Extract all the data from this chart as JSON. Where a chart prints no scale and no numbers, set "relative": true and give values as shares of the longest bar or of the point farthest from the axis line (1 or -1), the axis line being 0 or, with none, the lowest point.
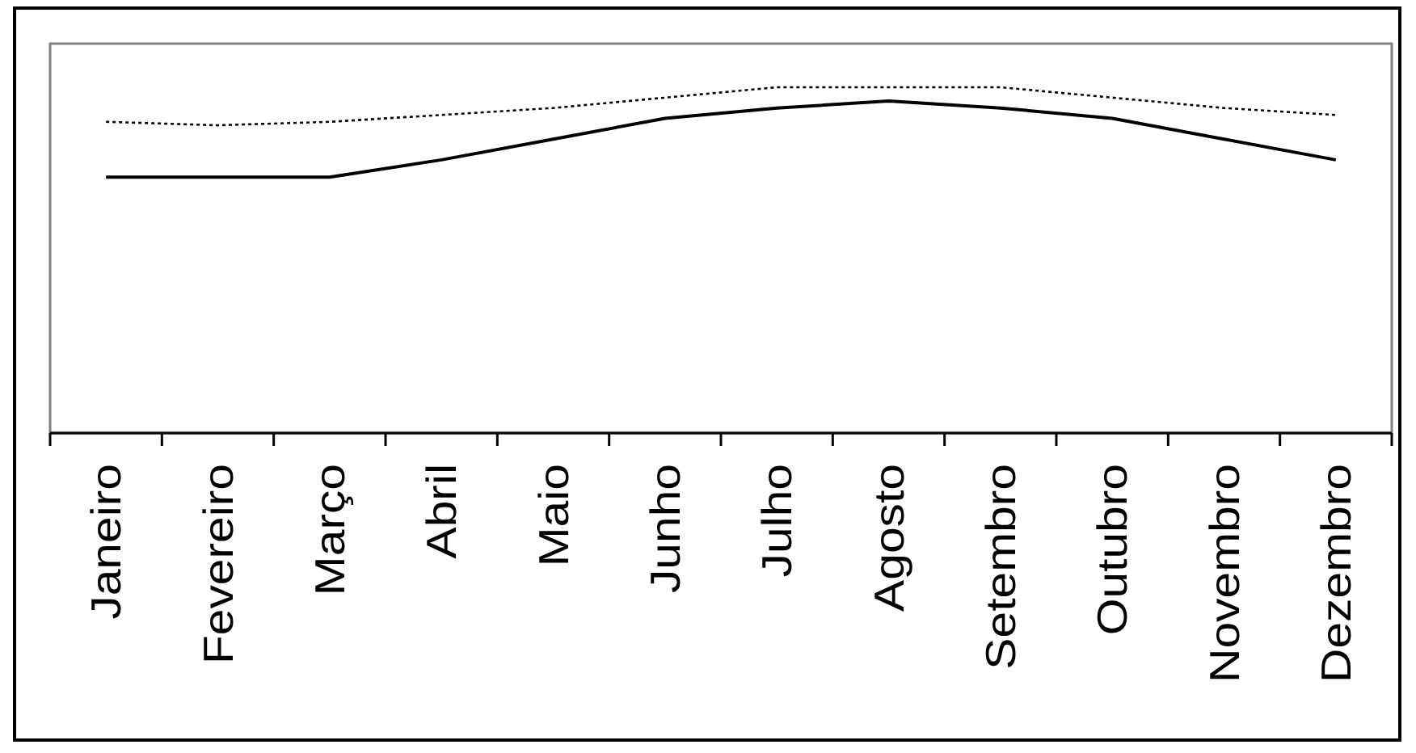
{
  "chart_data": {
    "type": "line",
    "relative": true,
    "categories": [
      "Janeiro",
      "Fevereiro",
      "Março",
      "Abril",
      "Maio",
      "Junho",
      "Julho",
      "Agosto",
      "Setembro",
      "Outubro",
      "Novembro",
      "Dezembro"
    ],
    "series": [
      {
        "color": "#000000",
        "line_style": "dotted",
        "values": [
          0.9,
          0.89,
          0.9,
          0.92,
          0.94,
          0.97,
          1,
          1,
          1,
          0.97,
          0.94,
          0.92
        ]
      },
      {
        "color": "#000000",
        "line_style": "solid",
        "values": [
          0.74,
          0.74,
          0.74,
          0.79,
          0.85,
          0.91,
          0.94,
          0.96,
          0.94,
          0.91,
          0.85,
          0.79
        ]
      }
    ],
    "marker": "none"
  }
}
